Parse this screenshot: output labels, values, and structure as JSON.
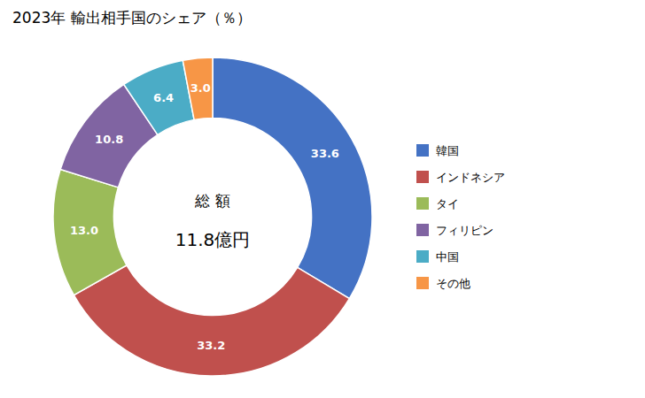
{
  "chart_data": {
    "type": "donut",
    "title": "2023年 輸出相手国のシェア（％）",
    "annotations": [
      "総 額",
      "11.8億円"
    ],
    "categories": [
      "韓国",
      "インドネシア",
      "タイ",
      "フィリピン",
      "中国",
      "その他"
    ],
    "values": [
      33.6,
      33.2,
      13.0,
      10.8,
      6.4,
      3.0
    ],
    "value_labels": [
      "33.6",
      "33.2",
      "13.0",
      "10.8",
      "6.4",
      "3.0"
    ],
    "colors": [
      "#4472C4",
      "#C0504D",
      "#9BBB59",
      "#8064A2",
      "#4BACC6",
      "#F79646"
    ],
    "data_labels": true,
    "legend": "right"
  }
}
